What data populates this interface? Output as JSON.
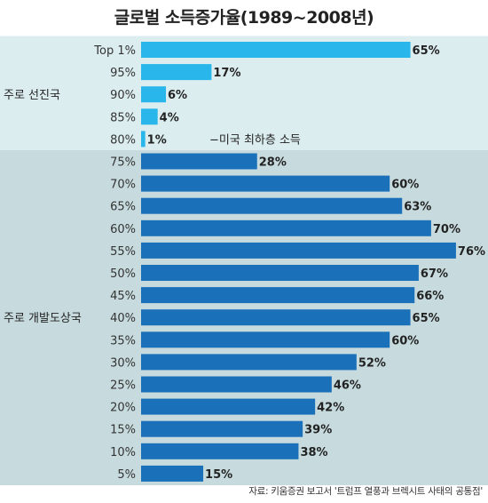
{
  "colors": {
    "developed_bar": "#29b6ea",
    "developing_bar": "#1a71b9",
    "developed_bg": "#dcedf0",
    "developing_bg": "#c7dbde"
  },
  "chart_data": {
    "type": "bar",
    "orientation": "horizontal",
    "title": "글로벌 소득증가율(1989~2008년)",
    "categories": [
      "Top 1%",
      "95%",
      "90%",
      "85%",
      "80%",
      "75%",
      "70%",
      "65%",
      "60%",
      "55%",
      "50%",
      "45%",
      "40%",
      "35%",
      "30%",
      "25%",
      "20%",
      "15%",
      "10%",
      "5%"
    ],
    "values": [
      65,
      17,
      6,
      4,
      1,
      28,
      60,
      63,
      70,
      76,
      67,
      66,
      65,
      60,
      52,
      46,
      42,
      39,
      38,
      15
    ],
    "value_labels": [
      "65%",
      "17%",
      "6%",
      "4%",
      "1%",
      "28%",
      "60%",
      "63%",
      "70%",
      "76%",
      "67%",
      "66%",
      "65%",
      "60%",
      "52%",
      "46%",
      "42%",
      "39%",
      "38%",
      "15%"
    ],
    "xlim": [
      0,
      100
    ],
    "groups": [
      {
        "label": "주로 선진국",
        "start": 0,
        "end": 4
      },
      {
        "label": "주로 개발도상국",
        "start": 5,
        "end": 19
      }
    ],
    "annotation": {
      "text": "−미국 최하층 소득",
      "index": 4
    },
    "source": "자료: 키움증권 보고서 '트럼프 열풍과 브렉시트 사태의 공통점'"
  }
}
